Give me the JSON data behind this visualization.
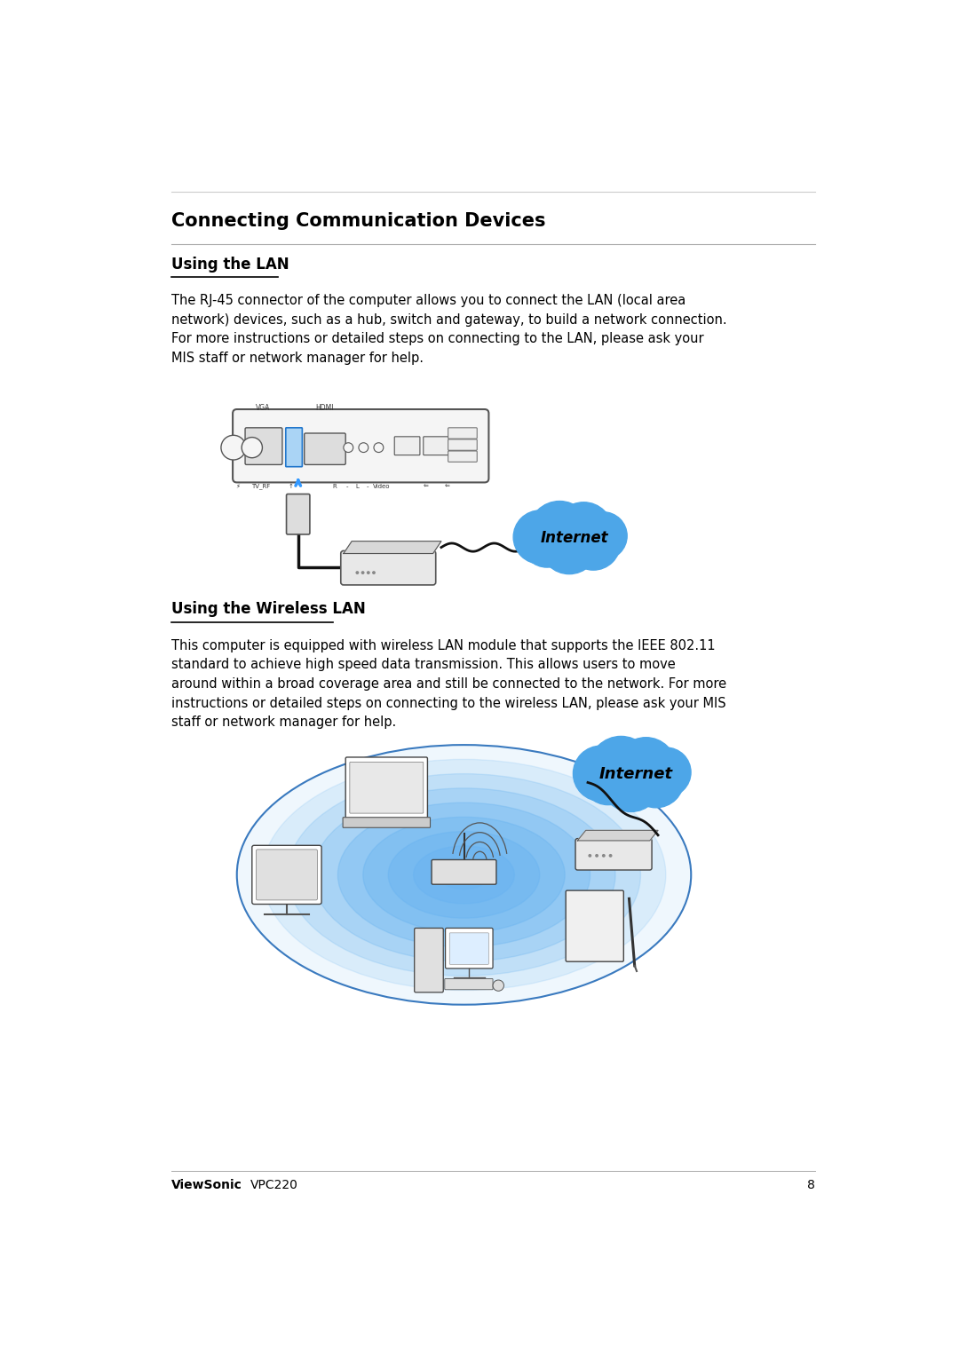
{
  "title": "Connecting Communication Devices",
  "section1_heading": "Using the LAN",
  "section1_text": "The RJ-45 connector of the computer allows you to connect the LAN (local area\nnetwork) devices, such as a hub, switch and gateway, to build a network connection.\nFor more instructions or detailed steps on connecting to the LAN, please ask your\nMIS staff or network manager for help.",
  "section2_heading": "Using the Wireless LAN",
  "section2_text": "This computer is equipped with wireless LAN module that supports the IEEE 802.11\nstandard to achieve high speed data transmission. This allows users to move\naround within a broad coverage area and still be connected to the network. For more\ninstructions or detailed steps on connecting to the wireless LAN, please ask your MIS\nstaff or network manager for help.",
  "footer_brand": "ViewSonic",
  "footer_model": "VPC220",
  "footer_page": "8",
  "bg_color": "#ffffff",
  "text_color": "#000000",
  "internet_cloud_color": "#4da6e8",
  "wifi_ellipse_color": "#6ab4f0",
  "title_fontsize": 15,
  "heading_fontsize": 12,
  "body_fontsize": 10.5,
  "footer_fontsize": 10
}
